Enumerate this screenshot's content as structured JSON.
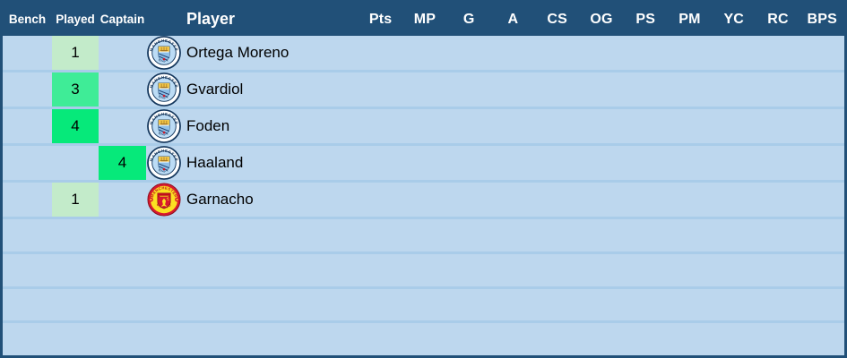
{
  "table": {
    "columns": {
      "bench": "Bench",
      "played": "Played",
      "captain": "Captain",
      "player": "Player",
      "stats": [
        "Pts",
        "MP",
        "G",
        "A",
        "CS",
        "OG",
        "PS",
        "PM",
        "YC",
        "RC",
        "BPS"
      ]
    },
    "rows": [
      {
        "bench": "",
        "played": "1",
        "played_color": "#C3EBCA",
        "captain": "",
        "captain_color": "",
        "team": "man-city",
        "team_icon": "man-city-badge-icon",
        "player": "Ortega Moreno"
      },
      {
        "bench": "",
        "played": "3",
        "played_color": "#3FEC97",
        "captain": "",
        "captain_color": "",
        "team": "man-city",
        "team_icon": "man-city-badge-icon",
        "player": "Gvardiol"
      },
      {
        "bench": "",
        "played": "4",
        "played_color": "#06E97A",
        "captain": "",
        "captain_color": "",
        "team": "man-city",
        "team_icon": "man-city-badge-icon",
        "player": "Foden"
      },
      {
        "bench": "",
        "played": "",
        "played_color": "",
        "captain": "4",
        "captain_color": "#06E97A",
        "team": "man-city",
        "team_icon": "man-city-badge-icon",
        "player": "Haaland"
      },
      {
        "bench": "",
        "played": "1",
        "played_color": "#C3EBCA",
        "captain": "",
        "captain_color": "",
        "team": "man-utd",
        "team_icon": "man-utd-badge-icon",
        "player": "Garnacho"
      },
      {
        "bench": "",
        "played": "",
        "played_color": "",
        "captain": "",
        "captain_color": "",
        "team": null,
        "player": ""
      },
      {
        "bench": "",
        "played": "",
        "played_color": "",
        "captain": "",
        "captain_color": "",
        "team": null,
        "player": ""
      },
      {
        "bench": "",
        "played": "",
        "played_color": "",
        "captain": "",
        "captain_color": "",
        "team": null,
        "player": ""
      },
      {
        "bench": "",
        "played": "",
        "played_color": "",
        "captain": "",
        "captain_color": "",
        "team": null,
        "player": ""
      }
    ]
  },
  "colors": {
    "header_bg": "#215078",
    "outer_border": "#215078",
    "row_bg": "#BDD7EE",
    "row_divider": "#A9CCE9",
    "header_text": "#FFFFFF",
    "cell_text": "#000000",
    "green_pale": "#C3EBCA",
    "green_mid": "#3FEC97",
    "green_bright": "#06E97A"
  }
}
